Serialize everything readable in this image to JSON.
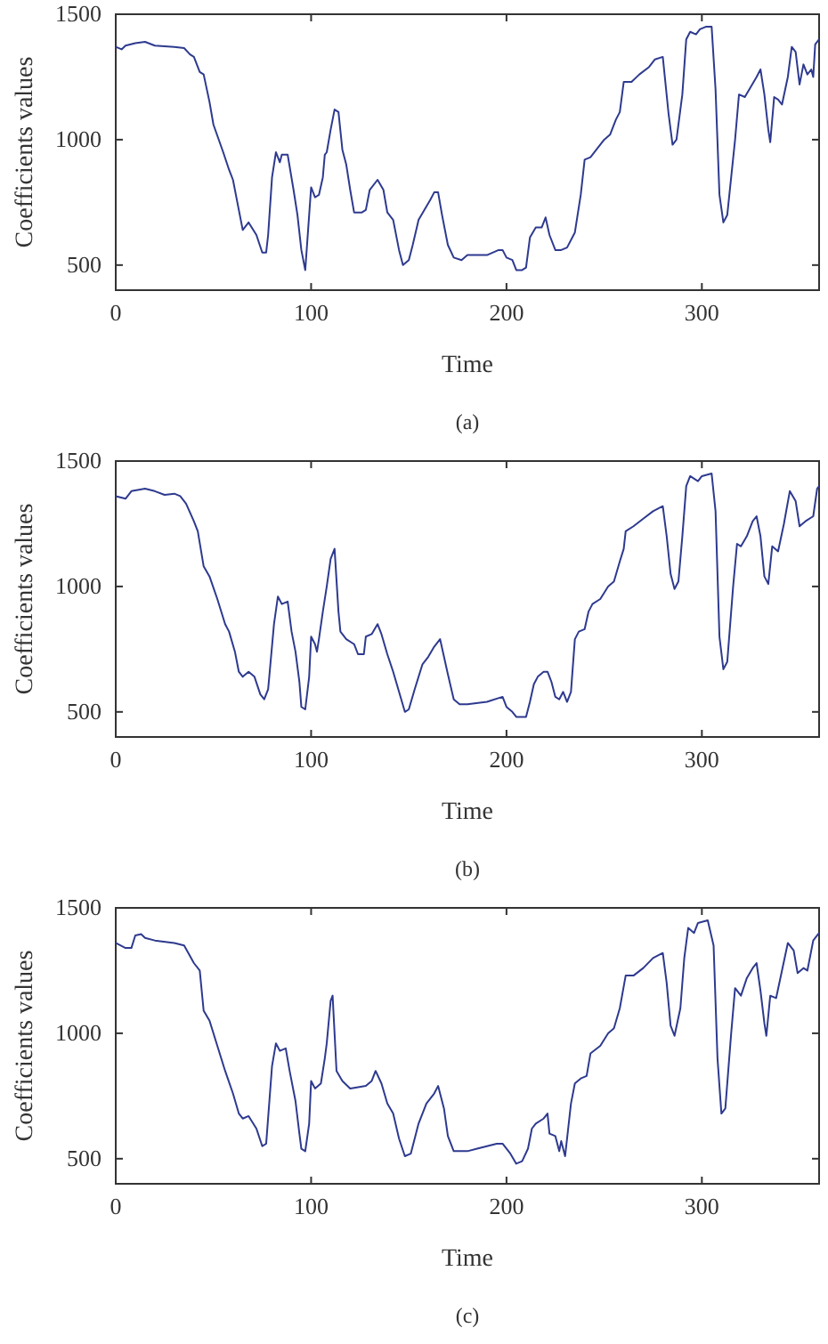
{
  "chart_data": [
    {
      "type": "line",
      "title": "(a)",
      "xlabel": "Time",
      "ylabel": "Coefficients values",
      "xlim": [
        0,
        360
      ],
      "ylim": [
        400,
        1500
      ],
      "xticks": [
        0,
        100,
        200,
        300
      ],
      "yticks": [
        500,
        1000,
        1500
      ],
      "grid": false,
      "marker": "none",
      "line_style": "solid",
      "x": [
        0,
        3,
        5,
        10,
        15,
        20,
        30,
        35,
        38,
        40,
        43,
        45,
        48,
        50,
        55,
        58,
        60,
        63,
        65,
        68,
        72,
        75,
        77,
        78,
        80,
        82,
        84,
        85,
        88,
        91,
        93,
        95,
        97,
        99,
        100,
        102,
        104,
        106,
        107,
        108,
        110,
        112,
        114,
        116,
        118,
        120,
        122,
        126,
        128,
        130,
        134,
        137,
        139,
        142,
        145,
        147,
        150,
        152,
        155,
        158,
        161,
        163,
        165,
        167,
        170,
        173,
        177,
        180,
        190,
        196,
        198,
        200,
        203,
        205,
        208,
        210,
        212,
        215,
        218,
        220,
        222,
        225,
        228,
        231,
        235,
        238,
        240,
        243,
        246,
        250,
        253,
        256,
        258,
        260,
        264,
        268,
        273,
        276,
        280,
        283,
        285,
        287,
        290,
        292,
        294,
        297,
        299,
        302,
        305,
        307,
        309,
        311,
        313,
        317,
        319,
        322,
        325,
        328,
        330,
        332,
        334,
        335,
        337,
        339,
        341,
        344,
        346,
        348,
        350,
        352,
        354,
        356,
        357,
        358,
        360
      ],
      "series": [
        {
          "color": "#2e3a8f",
          "values": [
            1370,
            1360,
            1375,
            1385,
            1390,
            1375,
            1370,
            1365,
            1340,
            1330,
            1270,
            1260,
            1150,
            1060,
            950,
            880,
            840,
            720,
            640,
            670,
            620,
            550,
            550,
            620,
            850,
            950,
            910,
            940,
            940,
            800,
            700,
            560,
            480,
            700,
            810,
            770,
            780,
            850,
            940,
            950,
            1040,
            1120,
            1110,
            960,
            900,
            800,
            710,
            710,
            720,
            800,
            840,
            800,
            710,
            680,
            560,
            500,
            520,
            580,
            680,
            720,
            760,
            790,
            790,
            700,
            580,
            530,
            520,
            540,
            540,
            560,
            560,
            530,
            520,
            480,
            480,
            490,
            610,
            650,
            650,
            690,
            620,
            560,
            560,
            570,
            630,
            780,
            920,
            930,
            960,
            1000,
            1020,
            1080,
            1110,
            1230,
            1230,
            1260,
            1290,
            1320,
            1330,
            1100,
            980,
            1000,
            1180,
            1400,
            1430,
            1420,
            1440,
            1450,
            1450,
            1200,
            780,
            670,
            700,
            1000,
            1180,
            1170,
            1210,
            1250,
            1280,
            1180,
            1040,
            990,
            1170,
            1160,
            1140,
            1250,
            1370,
            1350,
            1220,
            1300,
            1260,
            1280,
            1250,
            1380,
            1400
          ]
        }
      ]
    },
    {
      "type": "line",
      "title": "(b)",
      "xlabel": "Time",
      "ylabel": "Coefficients values",
      "xlim": [
        0,
        360
      ],
      "ylim": [
        400,
        1500
      ],
      "xticks": [
        0,
        100,
        200,
        300
      ],
      "yticks": [
        500,
        1000,
        1500
      ],
      "grid": false,
      "marker": "none",
      "line_style": "solid",
      "x": [
        0,
        5,
        8,
        15,
        20,
        25,
        30,
        33,
        36,
        40,
        42,
        45,
        48,
        52,
        56,
        58,
        61,
        63,
        65,
        68,
        71,
        74,
        76,
        78,
        81,
        83,
        85,
        88,
        90,
        92,
        94,
        95,
        97,
        99,
        100,
        102,
        103,
        104,
        106,
        108,
        110,
        112,
        114,
        115,
        118,
        122,
        124,
        127,
        128,
        131,
        134,
        136,
        139,
        142,
        145,
        148,
        150,
        153,
        157,
        160,
        163,
        166,
        170,
        173,
        176,
        180,
        190,
        198,
        200,
        203,
        205,
        210,
        212,
        214,
        216,
        219,
        221,
        223,
        225,
        227,
        229,
        231,
        233,
        235,
        237,
        240,
        242,
        244,
        248,
        252,
        255,
        258,
        260,
        261,
        265,
        270,
        275,
        280,
        282,
        284,
        286,
        288,
        290,
        292,
        294,
        298,
        300,
        305,
        307,
        309,
        311,
        313,
        316,
        318,
        320,
        323,
        326,
        328,
        330,
        332,
        334,
        336,
        339,
        342,
        345,
        348,
        350,
        353,
        357,
        359,
        360
      ],
      "series": [
        {
          "color": "#2e3a8f",
          "values": [
            1360,
            1350,
            1380,
            1390,
            1380,
            1365,
            1370,
            1360,
            1330,
            1260,
            1220,
            1080,
            1040,
            950,
            850,
            820,
            740,
            660,
            640,
            660,
            640,
            570,
            550,
            590,
            850,
            960,
            930,
            940,
            820,
            740,
            620,
            520,
            510,
            640,
            800,
            770,
            740,
            790,
            900,
            1000,
            1110,
            1150,
            900,
            820,
            790,
            770,
            730,
            730,
            800,
            810,
            850,
            810,
            730,
            660,
            580,
            500,
            510,
            590,
            690,
            720,
            760,
            790,
            650,
            550,
            530,
            530,
            540,
            560,
            520,
            500,
            480,
            480,
            540,
            610,
            640,
            660,
            660,
            620,
            560,
            550,
            580,
            540,
            580,
            790,
            820,
            830,
            900,
            930,
            950,
            1000,
            1020,
            1100,
            1150,
            1220,
            1240,
            1270,
            1300,
            1320,
            1200,
            1050,
            990,
            1020,
            1200,
            1400,
            1440,
            1420,
            1440,
            1450,
            1300,
            800,
            670,
            700,
            1000,
            1170,
            1160,
            1200,
            1260,
            1280,
            1200,
            1040,
            1010,
            1160,
            1140,
            1250,
            1380,
            1340,
            1240,
            1260,
            1280,
            1390,
            1400
          ]
        }
      ]
    },
    {
      "type": "line",
      "title": "(c)",
      "xlabel": "Time",
      "ylabel": "Coefficients values",
      "xlim": [
        0,
        360
      ],
      "ylim": [
        400,
        1500
      ],
      "xticks": [
        0,
        100,
        200,
        300
      ],
      "yticks": [
        500,
        1000,
        1500
      ],
      "grid": false,
      "marker": "none",
      "line_style": "solid",
      "x": [
        0,
        5,
        8,
        10,
        13,
        15,
        20,
        30,
        35,
        40,
        43,
        45,
        48,
        52,
        56,
        60,
        63,
        65,
        68,
        72,
        75,
        77,
        80,
        82,
        84,
        87,
        89,
        92,
        94,
        95,
        97,
        99,
        100,
        102,
        105,
        107,
        108,
        110,
        111,
        113,
        116,
        120,
        128,
        131,
        133,
        136,
        139,
        142,
        145,
        148,
        151,
        155,
        159,
        163,
        165,
        168,
        170,
        173,
        180,
        185,
        190,
        195,
        198,
        202,
        205,
        208,
        211,
        213,
        215,
        219,
        221,
        222,
        225,
        227,
        228,
        230,
        233,
        235,
        238,
        241,
        243,
        248,
        252,
        255,
        258,
        261,
        265,
        270,
        275,
        280,
        282,
        284,
        286,
        289,
        291,
        293,
        296,
        298,
        303,
        306,
        308,
        310,
        312,
        315,
        317,
        320,
        323,
        326,
        328,
        330,
        332,
        333,
        335,
        338,
        341,
        344,
        347,
        349,
        352,
        354,
        357,
        360
      ],
      "series": [
        {
          "color": "#2e3a8f",
          "values": [
            1360,
            1340,
            1340,
            1390,
            1395,
            1380,
            1370,
            1360,
            1350,
            1280,
            1250,
            1090,
            1050,
            950,
            850,
            760,
            680,
            660,
            670,
            620,
            550,
            560,
            870,
            960,
            930,
            940,
            850,
            730,
            600,
            540,
            530,
            640,
            810,
            780,
            800,
            900,
            960,
            1130,
            1150,
            850,
            810,
            780,
            790,
            810,
            850,
            800,
            720,
            680,
            580,
            510,
            520,
            640,
            720,
            760,
            790,
            700,
            590,
            530,
            530,
            540,
            550,
            560,
            560,
            520,
            480,
            490,
            540,
            620,
            640,
            660,
            680,
            600,
            590,
            530,
            570,
            510,
            720,
            800,
            820,
            830,
            920,
            950,
            1000,
            1020,
            1100,
            1230,
            1230,
            1260,
            1300,
            1320,
            1200,
            1030,
            990,
            1100,
            1300,
            1420,
            1400,
            1440,
            1450,
            1350,
            900,
            680,
            700,
            1000,
            1180,
            1150,
            1220,
            1260,
            1280,
            1170,
            1040,
            990,
            1150,
            1140,
            1250,
            1360,
            1330,
            1240,
            1260,
            1250,
            1370,
            1400
          ]
        }
      ]
    }
  ]
}
